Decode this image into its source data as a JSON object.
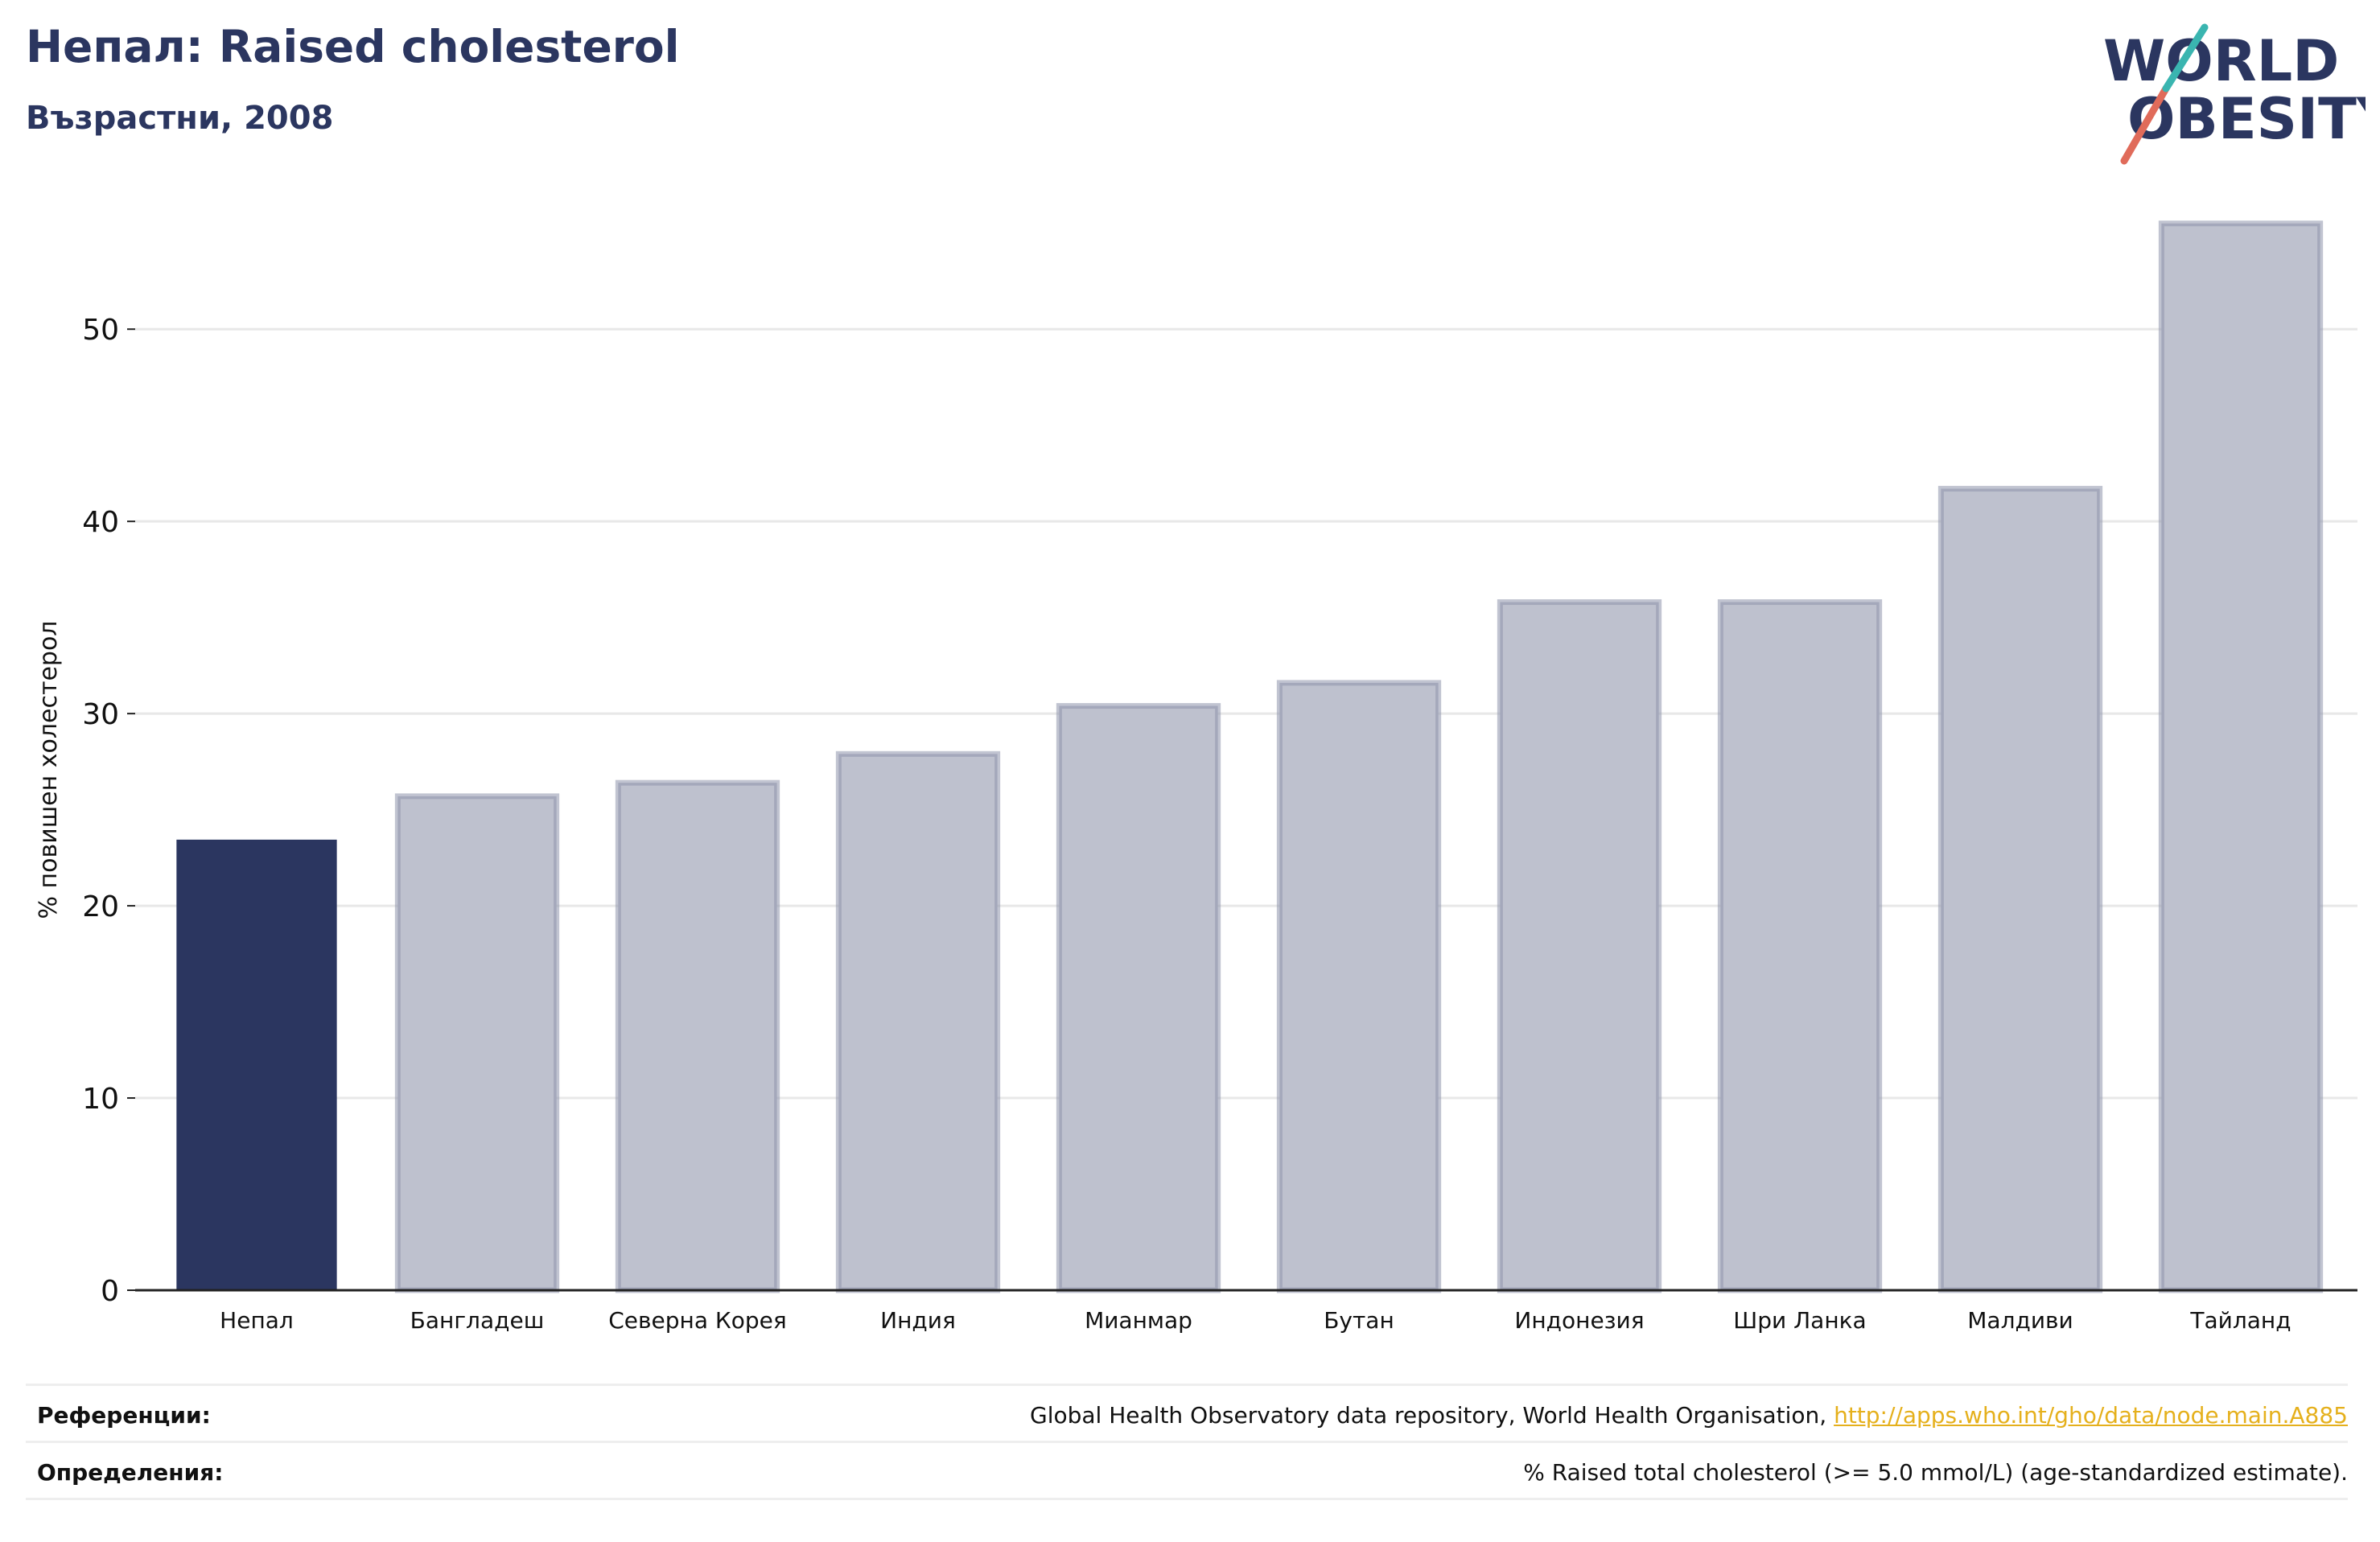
{
  "header": {
    "title": "Непал: Raised cholesterol",
    "subtitle": "Възрастни, 2008"
  },
  "logo": {
    "line1": "WORLD",
    "line2": "OBESITY",
    "colors": {
      "text": "#2b3660",
      "slash_red": "#e06b5a",
      "slash_teal": "#3ab5b0"
    }
  },
  "chart_data": {
    "type": "bar",
    "categories": [
      "Непал",
      "Бангладеш",
      "Северна Корея",
      "Индия",
      "Мианмар",
      "Бутан",
      "Индонезия",
      "Шри Ланка",
      "Малдиви",
      "Тайланд"
    ],
    "values": [
      23.4,
      25.7,
      26.4,
      27.9,
      30.4,
      31.6,
      35.8,
      35.8,
      41.7,
      55.5
    ],
    "highlight_index": 0,
    "ylabel": "% повишен холестерол",
    "xlabel": "",
    "ylim": [
      0,
      57.5
    ],
    "yticks": [
      0,
      10,
      20,
      30,
      40,
      50
    ],
    "grid": true,
    "colors": {
      "highlight": "#2b3660",
      "others_fill": "#bec1ce",
      "others_stroke": "#8e94ab",
      "grid": "#e8e8e8",
      "axis": "#222222"
    }
  },
  "footer": {
    "references_label": "Референции:",
    "references_text": "Global Health Observatory data repository, World Health Organisation, ",
    "references_link": "http://apps.who.int/gho/data/node.main.A885",
    "definitions_label": "Определения:",
    "definitions_text": "% Raised total cholesterol (>= 5.0 mmol/L) (age-standardized estimate)."
  }
}
